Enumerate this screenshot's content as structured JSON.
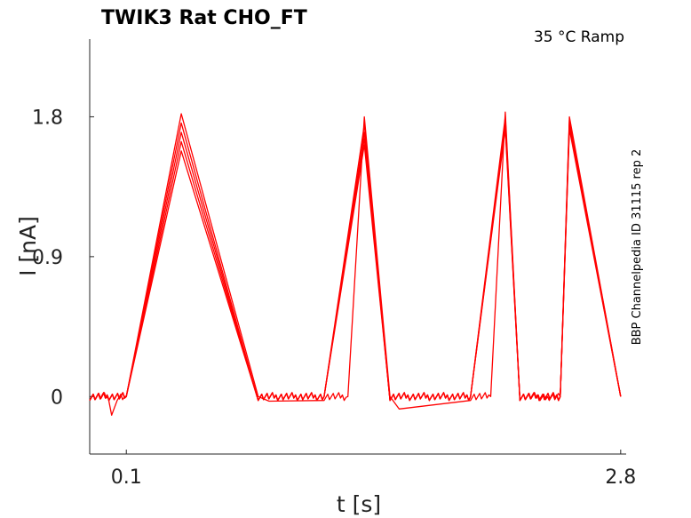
{
  "chart_data": {
    "type": "line",
    "title": "TWIK3  Rat  CHO_FT",
    "condition": "35 °C  Ramp",
    "side_label": "BBP Channelpedia ID 31115 rep 2",
    "xlabel": "t [s]",
    "ylabel": "I [nA]",
    "xlim": [
      -0.1,
      2.83
    ],
    "ylim": [
      -0.37,
      2.3
    ],
    "x_ticks": [
      {
        "value": 0.1,
        "label": "0.1"
      },
      {
        "value": 2.8,
        "label": "2.8"
      }
    ],
    "y_ticks": [
      {
        "value": 0,
        "label": "0"
      },
      {
        "value": 0.9,
        "label": "0.9"
      },
      {
        "value": 1.8,
        "label": "1.8"
      }
    ],
    "grid": false,
    "line_color": "#ff0000",
    "series": [
      {
        "x": [
          -0.1,
          0.0,
          0.02,
          0.05,
          0.1,
          0.4,
          0.82,
          0.88,
          1.18,
          1.31,
          1.4,
          1.54,
          1.59,
          1.98,
          2.09,
          2.17,
          2.25,
          2.41,
          2.47,
          2.52,
          2.8
        ],
        "y": [
          0.0,
          0.0,
          -0.12,
          0.0,
          0.0,
          1.82,
          0.0,
          -0.03,
          0.0,
          0.0,
          1.8,
          0.0,
          -0.08,
          0.0,
          0.0,
          1.83,
          0.0,
          0.0,
          0.0,
          1.8,
          0.0
        ]
      },
      {
        "x": [
          -0.1,
          0.1,
          0.4,
          0.82,
          1.18,
          1.4,
          1.54,
          1.98,
          2.17,
          2.25,
          2.47,
          2.52,
          2.8
        ],
        "y": [
          0.0,
          0.0,
          1.76,
          0.0,
          0.0,
          1.75,
          0.0,
          0.0,
          1.8,
          0.0,
          0.0,
          1.78,
          0.0
        ]
      },
      {
        "x": [
          -0.1,
          0.1,
          0.4,
          0.82,
          1.18,
          1.4,
          1.54,
          1.98,
          2.17,
          2.25,
          2.47,
          2.52,
          2.8
        ],
        "y": [
          0.0,
          0.0,
          1.7,
          0.0,
          0.0,
          1.7,
          0.0,
          0.0,
          1.77,
          0.0,
          0.0,
          1.76,
          0.0
        ]
      },
      {
        "x": [
          -0.1,
          0.1,
          0.4,
          0.82,
          1.18,
          1.4,
          1.54,
          1.98,
          2.17,
          2.25,
          2.47,
          2.52,
          2.8
        ],
        "y": [
          0.0,
          0.0,
          1.64,
          0.0,
          0.0,
          1.66,
          0.0,
          0.0,
          1.74,
          0.0,
          0.0,
          1.74,
          0.0
        ]
      },
      {
        "x": [
          -0.1,
          0.1,
          0.4,
          0.82,
          1.18,
          1.4,
          1.54,
          1.98,
          2.17,
          2.25,
          2.47,
          2.52,
          2.8
        ],
        "y": [
          0.0,
          0.0,
          1.58,
          0.0,
          0.0,
          1.62,
          0.0,
          0.0,
          1.72,
          0.0,
          0.0,
          1.72,
          0.0
        ]
      }
    ]
  }
}
